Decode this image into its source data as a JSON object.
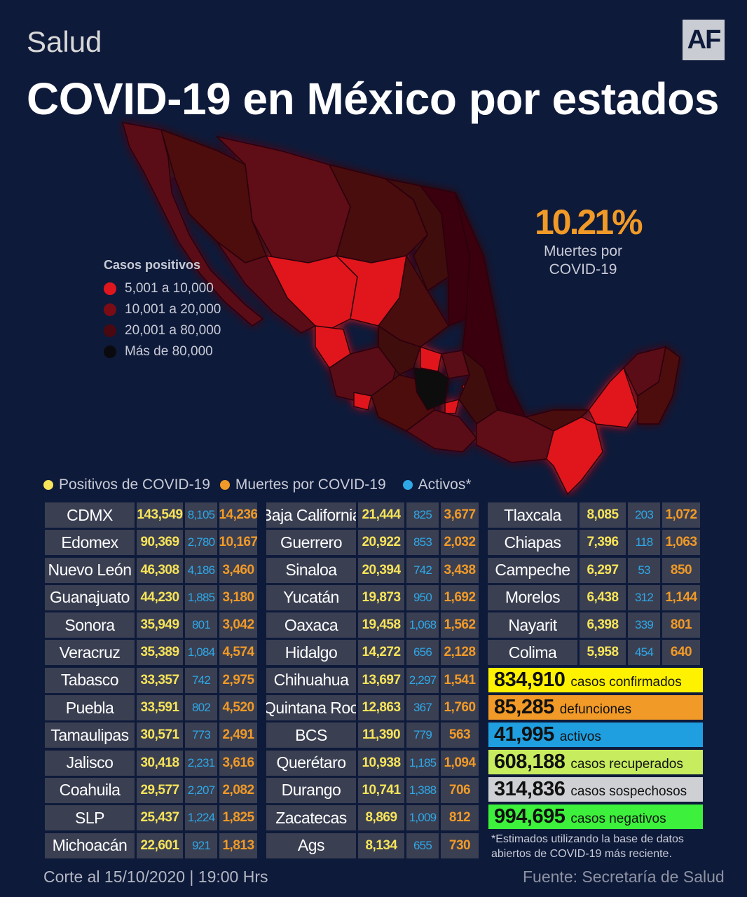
{
  "header": {
    "section": "Salud",
    "logo": "AF",
    "title": "COVID-19 en México por estados"
  },
  "map_legend": {
    "title": "Casos positivos",
    "items": [
      {
        "label": "5,001  a  10,000",
        "color": "#e0161e"
      },
      {
        "label": "10,001 a  20,000",
        "color": "#7a0c15"
      },
      {
        "label": "20,001 a  80,000",
        "color": "#4a0810"
      },
      {
        "label": "Más  de  80,000",
        "color": "#0a0a0e"
      }
    ]
  },
  "death_rate": {
    "value": "10.21%",
    "label": "Muertes por COVID-19"
  },
  "series_legend": [
    {
      "label": "Positivos de COVID-19",
      "color": "#f7e45a"
    },
    {
      "label": "Muertes por COVID-19",
      "color": "#f19a27"
    },
    {
      "label": "Activos*",
      "color": "#2fa8e6"
    }
  ],
  "tables": [
    [
      {
        "state": "CDMX",
        "positive": "143,549",
        "active": "8,105",
        "deaths": "14,236"
      },
      {
        "state": "Edomex",
        "positive": "90,369",
        "active": "2,780",
        "deaths": "10,167"
      },
      {
        "state": "Nuevo León",
        "positive": "46,308",
        "active": "4,186",
        "deaths": "3,460"
      },
      {
        "state": "Guanajuato",
        "positive": "44,230",
        "active": "1,885",
        "deaths": "3,180"
      },
      {
        "state": "Sonora",
        "positive": "35,949",
        "active": "801",
        "deaths": "3,042"
      },
      {
        "state": "Veracruz",
        "positive": "35,389",
        "active": "1,084",
        "deaths": "4,574"
      },
      {
        "state": "Tabasco",
        "positive": "33,357",
        "active": "742",
        "deaths": "2,975"
      },
      {
        "state": "Puebla",
        "positive": "33,591",
        "active": "802",
        "deaths": "4,520"
      },
      {
        "state": "Tamaulipas",
        "positive": "30,571",
        "active": "773",
        "deaths": "2,491"
      },
      {
        "state": "Jalisco",
        "positive": "30,418",
        "active": "2,231",
        "deaths": "3,616"
      },
      {
        "state": "Coahuila",
        "positive": "29,577",
        "active": "2,207",
        "deaths": "2,082"
      },
      {
        "state": "SLP",
        "positive": "25,437",
        "active": "1,224",
        "deaths": "1,825"
      },
      {
        "state": "Michoacán",
        "positive": "22,601",
        "active": "921",
        "deaths": "1,813"
      }
    ],
    [
      {
        "state": "Baja California",
        "positive": "21,444",
        "active": "825",
        "deaths": "3,677"
      },
      {
        "state": "Guerrero",
        "positive": "20,922",
        "active": "853",
        "deaths": "2,032"
      },
      {
        "state": "Sinaloa",
        "positive": "20,394",
        "active": "742",
        "deaths": "3,438"
      },
      {
        "state": "Yucatán",
        "positive": "19,873",
        "active": "950",
        "deaths": "1,692"
      },
      {
        "state": "Oaxaca",
        "positive": "19,458",
        "active": "1,068",
        "deaths": "1,562"
      },
      {
        "state": "Hidalgo",
        "positive": "14,272",
        "active": "656",
        "deaths": "2,128"
      },
      {
        "state": "Chihuahua",
        "positive": "13,697",
        "active": "2,297",
        "deaths": "1,541"
      },
      {
        "state": "Quintana Roo",
        "positive": "12,863",
        "active": "367",
        "deaths": "1,760"
      },
      {
        "state": "BCS",
        "positive": "11,390",
        "active": "779",
        "deaths": "563"
      },
      {
        "state": "Querétaro",
        "positive": "10,938",
        "active": "1,185",
        "deaths": "1,094"
      },
      {
        "state": "Durango",
        "positive": "10,741",
        "active": "1,388",
        "deaths": "706"
      },
      {
        "state": "Zacatecas",
        "positive": "8,869",
        "active": "1,009",
        "deaths": "812"
      },
      {
        "state": "Ags",
        "positive": "8,134",
        "active": "655",
        "deaths": "730"
      }
    ],
    [
      {
        "state": "Tlaxcala",
        "positive": "8,085",
        "active": "203",
        "deaths": "1,072"
      },
      {
        "state": "Chiapas",
        "positive": "7,396",
        "active": "118",
        "deaths": "1,063"
      },
      {
        "state": "Campeche",
        "positive": "6,297",
        "active": "53",
        "deaths": "850"
      },
      {
        "state": "Morelos",
        "positive": "6,438",
        "active": "312",
        "deaths": "1,144"
      },
      {
        "state": "Nayarit",
        "positive": "6,398",
        "active": "339",
        "deaths": "801"
      },
      {
        "state": "Colima",
        "positive": "5,958",
        "active": "454",
        "deaths": "640"
      }
    ]
  ],
  "summary": [
    {
      "value": "834,910",
      "label": "casos confirmados",
      "color": "#fff200"
    },
    {
      "value": "85,285",
      "label": "defunciones",
      "color": "#f19a27"
    },
    {
      "value": "41,995",
      "label": "activos",
      "color": "#1f9fe0"
    },
    {
      "value": "608,188",
      "label": "casos recuperados",
      "color": "#c7ec5e"
    },
    {
      "value": "314,836",
      "label": "casos sospechosos",
      "color": "#cfd0d4"
    },
    {
      "value": "994,695",
      "label": "casos negativos",
      "color": "#3cf03c"
    }
  ],
  "footnote": "*Estimados utilizando la base de datos abiertos de COVID-19 más reciente.",
  "footer": {
    "date": "Corte al 15/10/2020 | 19:00 Hrs",
    "source": "Fuente: Secretaría de Salud"
  }
}
